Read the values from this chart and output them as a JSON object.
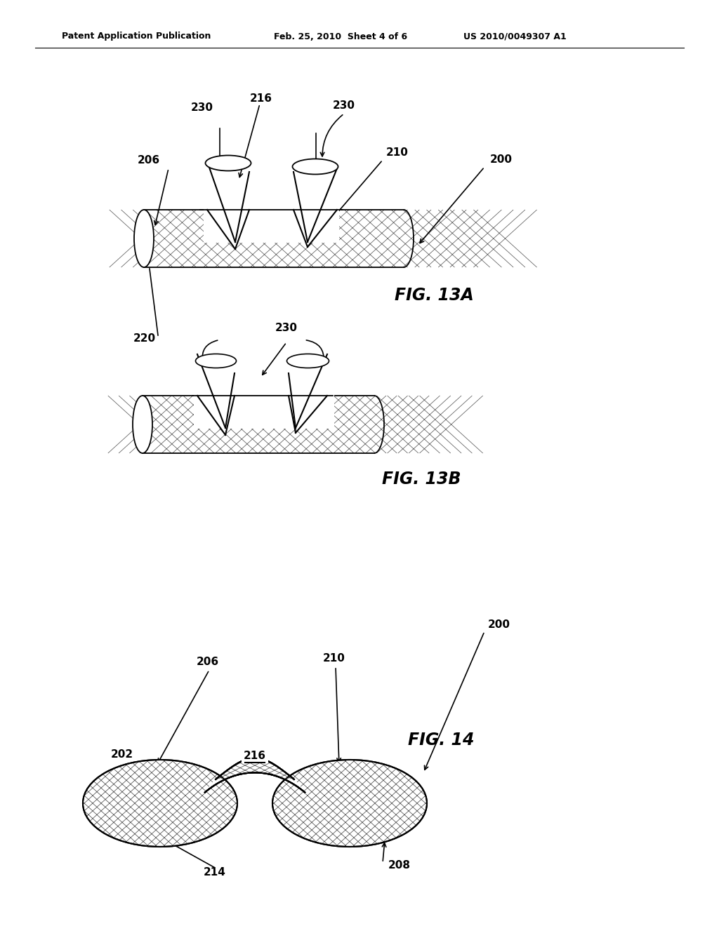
{
  "bg_color": "#ffffff",
  "text_color": "#000000",
  "header_left": "Patent Application Publication",
  "header_mid": "Feb. 25, 2010  Sheet 4 of 6",
  "header_right": "US 2010/0049307 A1",
  "fig13a_label": "FIG. 13A",
  "fig13b_label": "FIG. 13B",
  "fig14_label": "FIG. 14"
}
